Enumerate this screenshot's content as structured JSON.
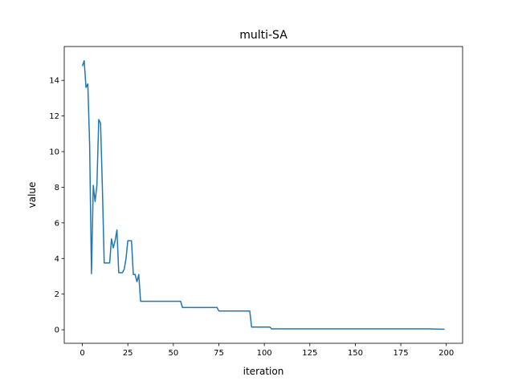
{
  "chart_data": {
    "type": "line",
    "title": "multi-SA",
    "xlabel": "iteration",
    "ylabel": "value",
    "xlim": [
      -9.95,
      208.95
    ],
    "ylim": [
      -0.76,
      15.9
    ],
    "xticks": [
      0,
      25,
      50,
      75,
      100,
      125,
      150,
      175,
      200
    ],
    "yticks": [
      0,
      2,
      4,
      6,
      8,
      10,
      12,
      14
    ],
    "grid": false,
    "series": [
      {
        "name": "value",
        "color": "#1f77b4",
        "points": [
          [
            0,
            14.8
          ],
          [
            1,
            15.1
          ],
          [
            2,
            13.6
          ],
          [
            3,
            13.8
          ],
          [
            4,
            10.4
          ],
          [
            5,
            3.15
          ],
          [
            6,
            8.1
          ],
          [
            7,
            7.2
          ],
          [
            8,
            8.1
          ],
          [
            9,
            11.8
          ],
          [
            10,
            11.6
          ],
          [
            11,
            8.0
          ],
          [
            12,
            3.75
          ],
          [
            13,
            3.75
          ],
          [
            14,
            3.75
          ],
          [
            15,
            3.75
          ],
          [
            16,
            5.1
          ],
          [
            17,
            4.6
          ],
          [
            18,
            5.0
          ],
          [
            19,
            5.6
          ],
          [
            20,
            3.2
          ],
          [
            21,
            3.2
          ],
          [
            22,
            3.2
          ],
          [
            23,
            3.4
          ],
          [
            24,
            4.0
          ],
          [
            25,
            5.0
          ],
          [
            26,
            5.0
          ],
          [
            27,
            5.0
          ],
          [
            28,
            3.1
          ],
          [
            29,
            3.1
          ],
          [
            30,
            2.7
          ],
          [
            31,
            3.1
          ],
          [
            32,
            1.6
          ],
          [
            33,
            1.6
          ],
          [
            40,
            1.6
          ],
          [
            50,
            1.6
          ],
          [
            54,
            1.6
          ],
          [
            55,
            1.25
          ],
          [
            65,
            1.25
          ],
          [
            74,
            1.25
          ],
          [
            75,
            1.05
          ],
          [
            85,
            1.05
          ],
          [
            92,
            1.05
          ],
          [
            93,
            0.15
          ],
          [
            103,
            0.15
          ],
          [
            104,
            0.05
          ],
          [
            130,
            0.05
          ],
          [
            160,
            0.05
          ],
          [
            190,
            0.05
          ],
          [
            199,
            0.03
          ]
        ]
      }
    ]
  }
}
